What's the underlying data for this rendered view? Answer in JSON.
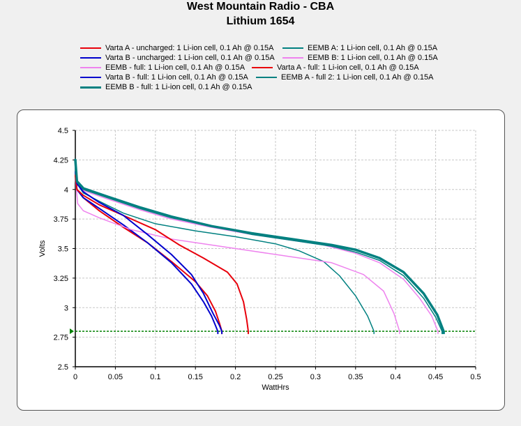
{
  "chart_data": {
    "type": "line",
    "title": "West Mountain Radio - CBA",
    "subtitle": "Lithium 1654",
    "xlabel": "WattHrs",
    "ylabel": "Volts",
    "xlim": [
      0,
      0.5
    ],
    "ylim": [
      2.5,
      4.5
    ],
    "x_ticks": [
      "0",
      "0.05",
      "0.1",
      "0.15",
      "0.2",
      "0.25",
      "0.3",
      "0.35",
      "0.4",
      "0.45",
      "0.5"
    ],
    "y_ticks": [
      "2.5",
      "2.75",
      "3",
      "3.25",
      "3.5",
      "3.75",
      "4",
      "4.25",
      "4.5"
    ],
    "grid": true,
    "legend_position": "top",
    "cutoff_line": {
      "value": 2.8,
      "color": "#008000"
    },
    "series": [
      {
        "name": "Varta A - uncharged: 1 Li-ion cell, 0.1 Ah @ 0.15A",
        "color": "#e8000b",
        "width": 2,
        "points": [
          [
            0,
            4.12
          ],
          [
            0.002,
            4.0
          ],
          [
            0.01,
            3.93
          ],
          [
            0.03,
            3.82
          ],
          [
            0.06,
            3.68
          ],
          [
            0.09,
            3.55
          ],
          [
            0.12,
            3.39
          ],
          [
            0.15,
            3.22
          ],
          [
            0.165,
            3.1
          ],
          [
            0.175,
            2.97
          ],
          [
            0.18,
            2.87
          ],
          [
            0.183,
            2.8
          ]
        ]
      },
      {
        "name": "EEMB A: 1 Li-ion cell, 0.1 Ah @ 0.15A",
        "color": "#008080",
        "width": 1.5,
        "points": [
          [
            0,
            4.2
          ],
          [
            0.002,
            4.05
          ],
          [
            0.01,
            3.97
          ],
          [
            0.03,
            3.9
          ],
          [
            0.06,
            3.8
          ],
          [
            0.1,
            3.71
          ],
          [
            0.15,
            3.65
          ],
          [
            0.2,
            3.6
          ],
          [
            0.25,
            3.54
          ],
          [
            0.28,
            3.48
          ],
          [
            0.31,
            3.39
          ],
          [
            0.33,
            3.27
          ],
          [
            0.35,
            3.1
          ],
          [
            0.365,
            2.93
          ],
          [
            0.373,
            2.8
          ]
        ]
      },
      {
        "name": "Varta B - uncharged: 1 Li-ion cell, 0.1 Ah @ 0.15A",
        "color": "#0000cd",
        "width": 2,
        "points": [
          [
            0,
            4.15
          ],
          [
            0.002,
            4.0
          ],
          [
            0.01,
            3.93
          ],
          [
            0.03,
            3.84
          ],
          [
            0.06,
            3.7
          ],
          [
            0.09,
            3.55
          ],
          [
            0.12,
            3.38
          ],
          [
            0.145,
            3.2
          ],
          [
            0.16,
            3.05
          ],
          [
            0.17,
            2.93
          ],
          [
            0.175,
            2.85
          ],
          [
            0.178,
            2.8
          ]
        ]
      },
      {
        "name": "EEMB B: 1 Li-ion cell, 0.1 Ah @ 0.15A",
        "color": "#ee82ee",
        "width": 1.5,
        "points": [
          [
            0,
            4.1
          ],
          [
            0.003,
            3.88
          ],
          [
            0.01,
            3.82
          ],
          [
            0.03,
            3.76
          ],
          [
            0.07,
            3.66
          ],
          [
            0.12,
            3.58
          ],
          [
            0.17,
            3.53
          ],
          [
            0.22,
            3.48
          ],
          [
            0.27,
            3.43
          ],
          [
            0.32,
            3.38
          ],
          [
            0.36,
            3.28
          ],
          [
            0.385,
            3.14
          ],
          [
            0.398,
            2.95
          ],
          [
            0.405,
            2.8
          ]
        ]
      },
      {
        "name": "EEMB - full: 1 Li-ion cell, 0.1 Ah @ 0.15A",
        "color": "#ee82ee",
        "width": 1.5,
        "points": [
          [
            0,
            4.2
          ],
          [
            0.002,
            4.05
          ],
          [
            0.01,
            3.99
          ],
          [
            0.04,
            3.92
          ],
          [
            0.08,
            3.83
          ],
          [
            0.12,
            3.75
          ],
          [
            0.17,
            3.68
          ],
          [
            0.22,
            3.62
          ],
          [
            0.27,
            3.57
          ],
          [
            0.31,
            3.53
          ],
          [
            0.35,
            3.46
          ],
          [
            0.38,
            3.38
          ],
          [
            0.41,
            3.24
          ],
          [
            0.43,
            3.08
          ],
          [
            0.445,
            2.93
          ],
          [
            0.453,
            2.8
          ]
        ]
      },
      {
        "name": "Varta A - full: 1 Li-ion cell, 0.1 Ah @ 0.15A",
        "color": "#e8000b",
        "width": 2,
        "points": [
          [
            0,
            4.12
          ],
          [
            0.002,
            4.0
          ],
          [
            0.01,
            3.95
          ],
          [
            0.03,
            3.87
          ],
          [
            0.06,
            3.78
          ],
          [
            0.1,
            3.66
          ],
          [
            0.13,
            3.53
          ],
          [
            0.16,
            3.42
          ],
          [
            0.19,
            3.3
          ],
          [
            0.202,
            3.2
          ],
          [
            0.21,
            3.05
          ],
          [
            0.214,
            2.9
          ],
          [
            0.216,
            2.8
          ]
        ]
      },
      {
        "name": "Varta B - full: 1 Li-ion cell, 0.1 Ah @ 0.15A",
        "color": "#0000cd",
        "width": 2,
        "points": [
          [
            0,
            4.25
          ],
          [
            0.002,
            4.05
          ],
          [
            0.01,
            3.98
          ],
          [
            0.03,
            3.89
          ],
          [
            0.06,
            3.78
          ],
          [
            0.09,
            3.62
          ],
          [
            0.12,
            3.45
          ],
          [
            0.145,
            3.28
          ],
          [
            0.16,
            3.12
          ],
          [
            0.172,
            2.95
          ],
          [
            0.18,
            2.85
          ],
          [
            0.183,
            2.8
          ]
        ]
      },
      {
        "name": "EEMB A - full 2: 1 Li-ion cell, 0.1 Ah @ 0.15A",
        "color": "#008080",
        "width": 1.5,
        "points": [
          [
            0,
            4.25
          ],
          [
            0.002,
            4.06
          ],
          [
            0.01,
            4.0
          ],
          [
            0.04,
            3.93
          ],
          [
            0.08,
            3.84
          ],
          [
            0.12,
            3.76
          ],
          [
            0.17,
            3.69
          ],
          [
            0.22,
            3.62
          ],
          [
            0.27,
            3.57
          ],
          [
            0.32,
            3.52
          ],
          [
            0.35,
            3.47
          ],
          [
            0.38,
            3.4
          ],
          [
            0.41,
            3.27
          ],
          [
            0.435,
            3.08
          ],
          [
            0.45,
            2.92
          ],
          [
            0.458,
            2.8
          ]
        ]
      },
      {
        "name": "EEMB B - full: 1 Li-ion cell, 0.1 Ah @ 0.15A",
        "color": "#008080",
        "width": 3.5,
        "points": [
          [
            0,
            4.25
          ],
          [
            0.002,
            4.07
          ],
          [
            0.01,
            4.01
          ],
          [
            0.04,
            3.94
          ],
          [
            0.08,
            3.85
          ],
          [
            0.12,
            3.77
          ],
          [
            0.17,
            3.69
          ],
          [
            0.22,
            3.63
          ],
          [
            0.27,
            3.58
          ],
          [
            0.32,
            3.53
          ],
          [
            0.35,
            3.49
          ],
          [
            0.38,
            3.42
          ],
          [
            0.41,
            3.3
          ],
          [
            0.435,
            3.12
          ],
          [
            0.452,
            2.94
          ],
          [
            0.46,
            2.8
          ]
        ]
      }
    ]
  }
}
